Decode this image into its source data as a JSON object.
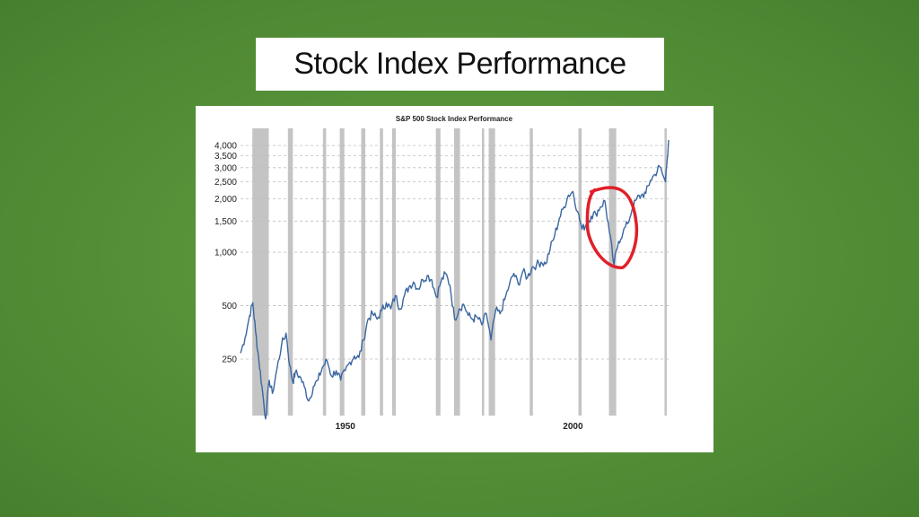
{
  "slide": {
    "title": "Stock Index Performance",
    "background_color": "#5a9a3c"
  },
  "chart_data": {
    "type": "line",
    "title": "S&P 500 Stock Index Performance",
    "xlabel": "",
    "ylabel": "",
    "y_scale": "log",
    "xlim": [
      1927,
      2021
    ],
    "ylim": [
      120,
      5000
    ],
    "y_ticks": [
      250,
      500,
      1000,
      1500,
      2000,
      2500,
      3000,
      3500,
      4000
    ],
    "y_tick_labels": [
      "250",
      "500",
      "1,000",
      "1,500",
      "2,000",
      "2,500",
      "3,000",
      "3,500",
      "4,000"
    ],
    "x_ticks": [
      1950,
      2000
    ],
    "x_tick_labels": [
      "1950",
      "2000"
    ],
    "grid": "horizontal dashed",
    "line_color": "#3a66a0",
    "shading_color": "#c4c4c4",
    "annotation_color": "#e0202a",
    "recession_bands": [
      [
        1929.6,
        1933.2
      ],
      [
        1937.4,
        1938.5
      ],
      [
        1945.1,
        1945.8
      ],
      [
        1948.8,
        1949.8
      ],
      [
        1953.5,
        1954.4
      ],
      [
        1957.6,
        1958.3
      ],
      [
        1960.3,
        1961.1
      ],
      [
        1969.9,
        1970.9
      ],
      [
        1973.9,
        1975.2
      ],
      [
        1980.0,
        1980.5
      ],
      [
        1981.5,
        1982.9
      ],
      [
        1990.5,
        1991.2
      ],
      [
        2001.2,
        2001.9
      ],
      [
        2007.9,
        2009.5
      ],
      [
        2020.1,
        2020.6
      ]
    ],
    "series": [
      {
        "values": [
          [
            1927.0,
            270
          ],
          [
            1928.0,
            330
          ],
          [
            1929.0,
            440
          ],
          [
            1929.7,
            520
          ],
          [
            1930.3,
            360
          ],
          [
            1931.0,
            250
          ],
          [
            1931.7,
            175
          ],
          [
            1932.5,
            115
          ],
          [
            1933.3,
            190
          ],
          [
            1934.0,
            160
          ],
          [
            1935.0,
            220
          ],
          [
            1936.0,
            300
          ],
          [
            1937.0,
            350
          ],
          [
            1937.8,
            230
          ],
          [
            1938.5,
            185
          ],
          [
            1939.0,
            210
          ],
          [
            1940.0,
            200
          ],
          [
            1941.0,
            175
          ],
          [
            1942.0,
            145
          ],
          [
            1943.0,
            175
          ],
          [
            1944.0,
            190
          ],
          [
            1945.0,
            225
          ],
          [
            1946.0,
            245
          ],
          [
            1947.0,
            200
          ],
          [
            1948.0,
            215
          ],
          [
            1949.0,
            190
          ],
          [
            1950.0,
            215
          ],
          [
            1951.0,
            240
          ],
          [
            1952.0,
            260
          ],
          [
            1953.0,
            255
          ],
          [
            1954.0,
            320
          ],
          [
            1955.0,
            420
          ],
          [
            1956.0,
            450
          ],
          [
            1957.0,
            420
          ],
          [
            1958.0,
            470
          ],
          [
            1959.0,
            520
          ],
          [
            1960.0,
            480
          ],
          [
            1961.0,
            570
          ],
          [
            1962.0,
            480
          ],
          [
            1963.0,
            570
          ],
          [
            1964.0,
            640
          ],
          [
            1965.0,
            680
          ],
          [
            1966.0,
            620
          ],
          [
            1967.0,
            700
          ],
          [
            1968.0,
            740
          ],
          [
            1969.0,
            700
          ],
          [
            1970.0,
            560
          ],
          [
            1971.0,
            680
          ],
          [
            1972.0,
            760
          ],
          [
            1973.0,
            650
          ],
          [
            1974.0,
            420
          ],
          [
            1975.0,
            480
          ],
          [
            1976.0,
            510
          ],
          [
            1977.0,
            440
          ],
          [
            1978.0,
            420
          ],
          [
            1979.0,
            430
          ],
          [
            1980.0,
            390
          ],
          [
            1981.0,
            450
          ],
          [
            1982.0,
            320
          ],
          [
            1983.0,
            470
          ],
          [
            1984.0,
            450
          ],
          [
            1985.0,
            540
          ],
          [
            1986.0,
            650
          ],
          [
            1987.0,
            760
          ],
          [
            1988.0,
            660
          ],
          [
            1989.0,
            780
          ],
          [
            1990.0,
            720
          ],
          [
            1991.0,
            820
          ],
          [
            1992.0,
            850
          ],
          [
            1993.0,
            880
          ],
          [
            1994.0,
            860
          ],
          [
            1995.0,
            1050
          ],
          [
            1996.0,
            1250
          ],
          [
            1997.0,
            1550
          ],
          [
            1998.0,
            1800
          ],
          [
            1999.0,
            2100
          ],
          [
            2000.0,
            2200
          ],
          [
            2001.0,
            1700
          ],
          [
            2002.0,
            1350
          ],
          [
            2003.0,
            1450
          ],
          [
            2004.0,
            1600
          ],
          [
            2005.0,
            1650
          ],
          [
            2006.0,
            1800
          ],
          [
            2007.0,
            1950
          ],
          [
            2008.0,
            1300
          ],
          [
            2009.0,
            850
          ],
          [
            2010.0,
            1150
          ],
          [
            2011.0,
            1300
          ],
          [
            2012.0,
            1450
          ],
          [
            2013.0,
            1750
          ],
          [
            2014.0,
            2000
          ],
          [
            2015.0,
            2100
          ],
          [
            2016.0,
            2150
          ],
          [
            2017.0,
            2550
          ],
          [
            2018.0,
            2750
          ],
          [
            2019.0,
            3050
          ],
          [
            2020.3,
            2500
          ],
          [
            2021.0,
            4300
          ]
        ]
      }
    ]
  }
}
